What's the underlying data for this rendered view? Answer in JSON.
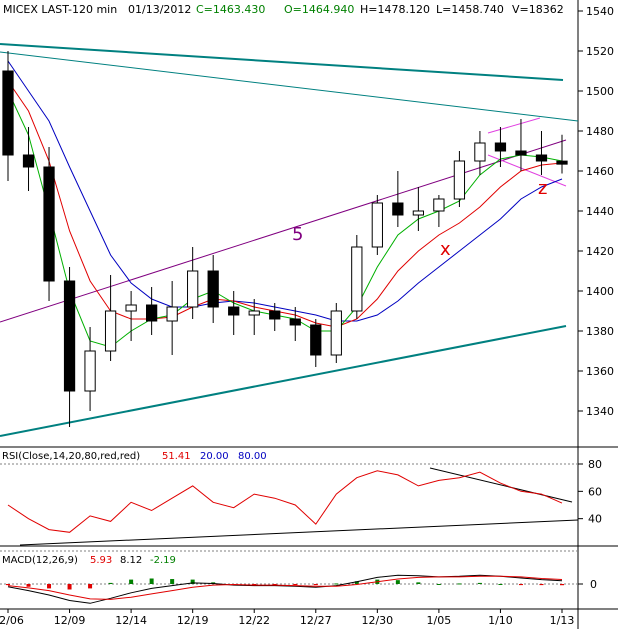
{
  "header": {
    "symbol": "MICEX LAST-120 min",
    "date": "01/13/2012",
    "close": "C=1463.430",
    "open": "O=1464.940",
    "high": "H=1478.120",
    "low": "L=1458.740",
    "volume": "V=18362"
  },
  "colors": {
    "background": "#ffffff",
    "candle": "#000000",
    "ma_fast": "#00b000",
    "ma_mid": "#e00000",
    "ma_slow": "#0000c0",
    "trend_teal": "#008080",
    "channel_purple": "#800080",
    "wedge_magenta": "#e040e0",
    "label_red": "#e00000",
    "rsi_line": "#e00000",
    "header_green": "#008000"
  },
  "annotations": {
    "wave5": "5",
    "waveX": "x",
    "waveZ": "z"
  },
  "rsi_panel": {
    "label": "RSI(Close,14,20,80,red,red)",
    "value": "51.41",
    "lower": "20.00",
    "upper": "80.00"
  },
  "macd_panel": {
    "label": "MACD(12,26,9)",
    "macd": "5.93",
    "signal": "8.12",
    "hist": "-2.19"
  },
  "chart_data": [
    {
      "type": "candlestick",
      "x": [
        "12/06",
        "12/07",
        "12/08",
        "12/09",
        "12/12",
        "12/13",
        "12/14",
        "12/15",
        "12/16",
        "12/19",
        "12/20",
        "12/21",
        "12/22",
        "12/23",
        "12/26",
        "12/27",
        "12/28",
        "12/29",
        "12/30",
        "1/03",
        "1/04",
        "1/05",
        "1/06",
        "1/09",
        "1/10",
        "1/11",
        "1/12",
        "1/13"
      ],
      "x_tick_labels": [
        "12/06",
        "12/09",
        "12/14",
        "12/19",
        "12/22",
        "12/27",
        "12/30",
        "1/05",
        "1/10",
        "1/13"
      ],
      "ohlc": [
        [
          1510,
          1520,
          1455,
          1468
        ],
        [
          1468,
          1482,
          1450,
          1462
        ],
        [
          1462,
          1472,
          1395,
          1405
        ],
        [
          1405,
          1412,
          1332,
          1350
        ],
        [
          1350,
          1382,
          1340,
          1370
        ],
        [
          1370,
          1408,
          1365,
          1390
        ],
        [
          1390,
          1400,
          1375,
          1393
        ],
        [
          1393,
          1402,
          1378,
          1385
        ],
        [
          1385,
          1405,
          1368,
          1392
        ],
        [
          1392,
          1422,
          1386,
          1410
        ],
        [
          1410,
          1418,
          1384,
          1392
        ],
        [
          1392,
          1400,
          1378,
          1388
        ],
        [
          1388,
          1396,
          1378,
          1390
        ],
        [
          1390,
          1394,
          1380,
          1386
        ],
        [
          1386,
          1392,
          1375,
          1383
        ],
        [
          1383,
          1386,
          1362,
          1368
        ],
        [
          1368,
          1394,
          1364,
          1390
        ],
        [
          1390,
          1428,
          1386,
          1422
        ],
        [
          1422,
          1448,
          1418,
          1444
        ],
        [
          1444,
          1460,
          1432,
          1438
        ],
        [
          1438,
          1452,
          1430,
          1440
        ],
        [
          1440,
          1448,
          1432,
          1446
        ],
        [
          1446,
          1470,
          1442,
          1465
        ],
        [
          1465,
          1480,
          1458,
          1474
        ],
        [
          1474,
          1482,
          1462,
          1470
        ],
        [
          1470,
          1486,
          1460,
          1468
        ],
        [
          1468,
          1480,
          1458,
          1465
        ],
        [
          1464.94,
          1478.12,
          1458.74,
          1463.43
        ]
      ],
      "ma_fast": [
        1500,
        1478,
        1440,
        1400,
        1375,
        1372,
        1380,
        1386,
        1388,
        1396,
        1400,
        1394,
        1390,
        1388,
        1386,
        1380,
        1380,
        1392,
        1412,
        1428,
        1436,
        1440,
        1445,
        1458,
        1466,
        1468,
        1467,
        1465
      ],
      "ma_mid": [
        1505,
        1490,
        1465,
        1430,
        1405,
        1390,
        1386,
        1386,
        1387,
        1392,
        1396,
        1395,
        1392,
        1390,
        1388,
        1384,
        1382,
        1386,
        1396,
        1410,
        1420,
        1428,
        1434,
        1442,
        1452,
        1460,
        1463,
        1464
      ],
      "ma_slow": [
        1515,
        1500,
        1485,
        1462,
        1440,
        1418,
        1404,
        1396,
        1392,
        1392,
        1394,
        1395,
        1394,
        1392,
        1390,
        1388,
        1385,
        1385,
        1388,
        1395,
        1404,
        1412,
        1420,
        1428,
        1436,
        1446,
        1452,
        1456
      ],
      "ylim": [
        1322,
        1544
      ],
      "y_ticks": [
        1340,
        1360,
        1380,
        1400,
        1420,
        1440,
        1460,
        1480,
        1500,
        1520,
        1540
      ]
    },
    {
      "type": "line",
      "name": "RSI",
      "x": [
        "12/06",
        "12/07",
        "12/08",
        "12/09",
        "12/12",
        "12/13",
        "12/14",
        "12/15",
        "12/16",
        "12/19",
        "12/20",
        "12/21",
        "12/22",
        "12/23",
        "12/26",
        "12/27",
        "12/28",
        "12/29",
        "12/30",
        "1/03",
        "1/04",
        "1/05",
        "1/06",
        "1/09",
        "1/10",
        "1/11",
        "1/12",
        "1/13"
      ],
      "values": [
        50,
        40,
        32,
        30,
        42,
        38,
        52,
        46,
        55,
        64,
        52,
        48,
        58,
        55,
        50,
        36,
        58,
        70,
        75,
        72,
        64,
        68,
        70,
        74,
        66,
        60,
        58,
        51.41
      ],
      "ylim": [
        0,
        100
      ],
      "y_ticks": [
        40,
        60,
        80
      ]
    },
    {
      "type": "line",
      "name": "MACD",
      "x": [
        "12/06",
        "12/07",
        "12/08",
        "12/09",
        "12/12",
        "12/13",
        "12/14",
        "12/15",
        "12/16",
        "12/19",
        "12/20",
        "12/21",
        "12/22",
        "12/23",
        "12/26",
        "12/27",
        "12/28",
        "12/29",
        "12/30",
        "1/03",
        "1/04",
        "1/05",
        "1/06",
        "1/09",
        "1/10",
        "1/11",
        "1/12",
        "1/13"
      ],
      "series": [
        {
          "name": "MACD",
          "values": [
            -5,
            -12,
            -20,
            -30,
            -35,
            -26,
            -16,
            -8,
            -3,
            2,
            1,
            -2,
            -3,
            -3,
            -4,
            -6,
            -3,
            4,
            12,
            16,
            15,
            13,
            14,
            16,
            14,
            11,
            8,
            5.93
          ]
        },
        {
          "name": "Signal",
          "values": [
            -3,
            -7,
            -12,
            -20,
            -27,
            -28,
            -24,
            -18,
            -12,
            -6,
            -2,
            -1,
            -2,
            -2,
            -3,
            -4,
            -4,
            -1,
            4,
            9,
            12,
            13,
            13,
            14,
            14,
            13,
            10,
            8.12
          ]
        }
      ],
      "histogram": [
        -2,
        -5,
        -8,
        -10,
        -8,
        2,
        8,
        10,
        9,
        8,
        3,
        -1,
        -1,
        -1,
        -1,
        -2,
        1,
        5,
        8,
        7,
        3,
        0,
        1,
        2,
        0,
        -2,
        -2,
        -2.19
      ],
      "ylim": [
        -40,
        40
      ],
      "y_ticks": [
        0
      ]
    }
  ]
}
